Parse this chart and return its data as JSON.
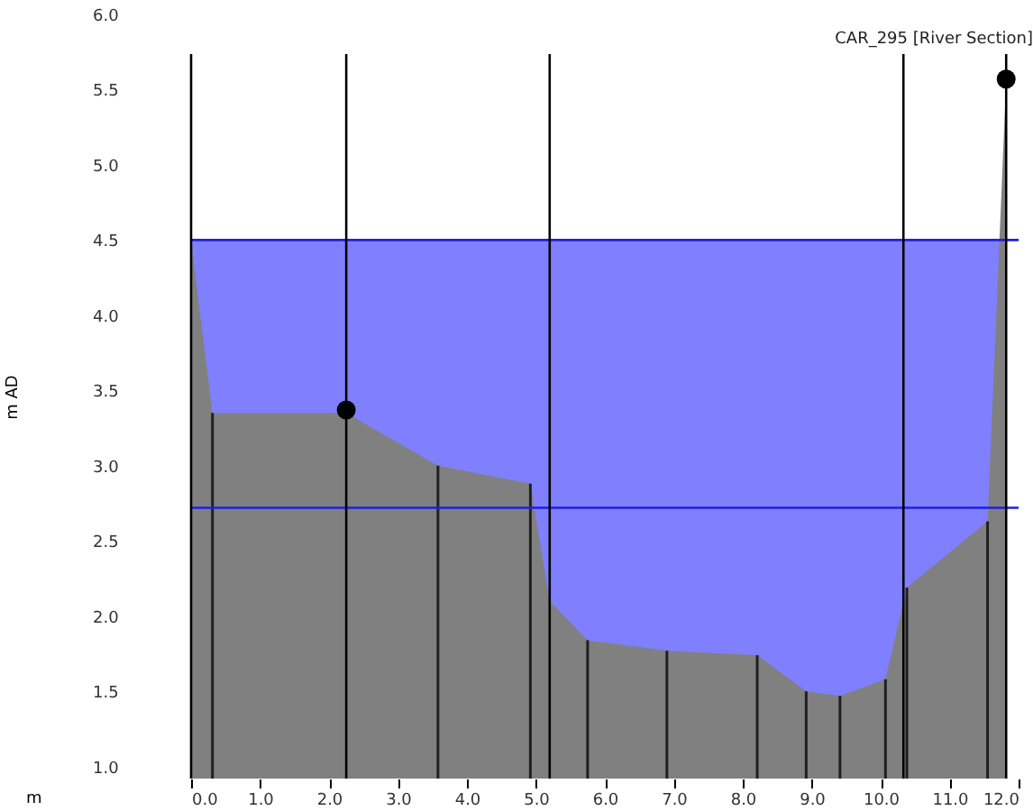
{
  "chart_data": {
    "type": "area",
    "xlabel": "m",
    "ylabel": "m AD",
    "annotations": [
      "CAR_295 [River Section]"
    ],
    "xlim": [
      0,
      12
    ],
    "ylim": [
      0.92,
      6.0
    ],
    "xticks": [
      {
        "value": 0,
        "label": "0.0"
      },
      {
        "value": 1,
        "label": "1.0"
      },
      {
        "value": 2,
        "label": "2.0"
      },
      {
        "value": 3,
        "label": "3.0"
      },
      {
        "value": 4,
        "label": "4.0"
      },
      {
        "value": 5,
        "label": "5.0"
      },
      {
        "value": 6,
        "label": "6.0"
      },
      {
        "value": 7,
        "label": "7.0"
      },
      {
        "value": 8,
        "label": "8.0"
      },
      {
        "value": 9,
        "label": "9.0"
      },
      {
        "value": 10,
        "label": "10.0"
      },
      {
        "value": 11,
        "label": "11.0"
      },
      {
        "value": 12,
        "label": "12.0"
      }
    ],
    "yticks": [
      {
        "value": 1,
        "label": "1.0"
      },
      1.5,
      {
        "value": 2,
        "label": "2.0"
      },
      2.5,
      {
        "value": 3,
        "label": "3.0"
      },
      3.5,
      {
        "value": 4,
        "label": "4.0"
      },
      4.5,
      {
        "value": 5,
        "label": "5.0"
      },
      5.5,
      {
        "value": 6,
        "label": "6.0"
      }
    ],
    "series": [
      {
        "color": "#8080ff",
        "x": [
          0,
          11.82
        ],
        "values": [
          4.5,
          4.5
        ]
      },
      {
        "color": "#808080",
        "x": [
          0,
          0.31,
          2.25,
          3.58,
          4.92,
          5.2,
          5.75,
          6.9,
          8.21,
          8.92,
          9.41,
          10.07,
          10.38,
          11.55,
          11.82
        ],
        "values": [
          4.5,
          3.35,
          3.35,
          3.0,
          2.88,
          2.1,
          1.84,
          1.77,
          1.74,
          1.5,
          1.47,
          1.58,
          2.19,
          2.63,
          5.56
        ]
      },
      {
        "type": "bar",
        "color": "#202020",
        "x": [
          0.31,
          3.58,
          4.92,
          5.75,
          6.9,
          8.21,
          8.92,
          9.41,
          10.07,
          10.38,
          11.55
        ],
        "values": [
          3.35,
          3.0,
          2.88,
          1.84,
          1.77,
          1.74,
          1.5,
          1.47,
          1.58,
          2.19,
          2.63
        ]
      },
      {
        "type": "scatter",
        "color": "#000000",
        "marker": "circle",
        "x": [
          2.25,
          11.82
        ],
        "values": [
          3.37,
          5.57
        ]
      }
    ],
    "ref_lines": [
      {
        "axis": "y",
        "value": 4.5,
        "color": "#2020e0"
      },
      {
        "axis": "y",
        "value": 2.72,
        "color": "#2020e0"
      },
      {
        "axis": "x",
        "value": 0,
        "color": "#000000"
      },
      {
        "axis": "x",
        "value": 2.25,
        "color": "#000000"
      },
      {
        "axis": "x",
        "value": 5.2,
        "color": "#000000"
      },
      {
        "axis": "x",
        "value": 10.33,
        "color": "#000000"
      },
      {
        "axis": "x",
        "value": 11.82,
        "color": "#000000"
      }
    ],
    "grid": false
  }
}
